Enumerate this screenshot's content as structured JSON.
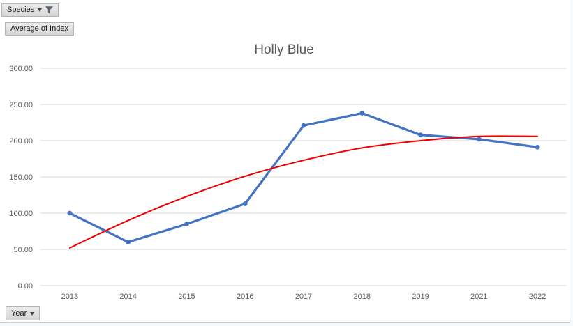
{
  "field_buttons": {
    "species": {
      "label": "Species",
      "filter_active": true
    },
    "value": {
      "label": "Average of Index"
    },
    "axis": {
      "label": "Year"
    }
  },
  "chart_data": {
    "type": "line",
    "title": "Holly Blue",
    "categories": [
      "2013",
      "2014",
      "2015",
      "2016",
      "2017",
      "2018",
      "2019",
      "2021",
      "2022"
    ],
    "series": [
      {
        "name": "Average of Index",
        "color": "#4472C4",
        "markers": true,
        "smooth": false,
        "values": [
          100,
          60,
          85,
          113,
          221,
          238,
          208,
          202,
          191
        ]
      },
      {
        "name": "Trendline (polynomial)",
        "color": "#EE0000",
        "markers": false,
        "smooth": true,
        "values": [
          52,
          90,
          123,
          151,
          173,
          190,
          200,
          206,
          206
        ]
      }
    ],
    "xlabel": "Year",
    "ylabel": "Average of Index",
    "ylim": [
      0,
      300
    ],
    "ytick_step": 50,
    "ytick_decimals": 2,
    "grid": true,
    "legend": "none",
    "colors": {
      "gridline": "#d9d9d9",
      "axis_text": "#595959",
      "title": "#595959"
    }
  }
}
